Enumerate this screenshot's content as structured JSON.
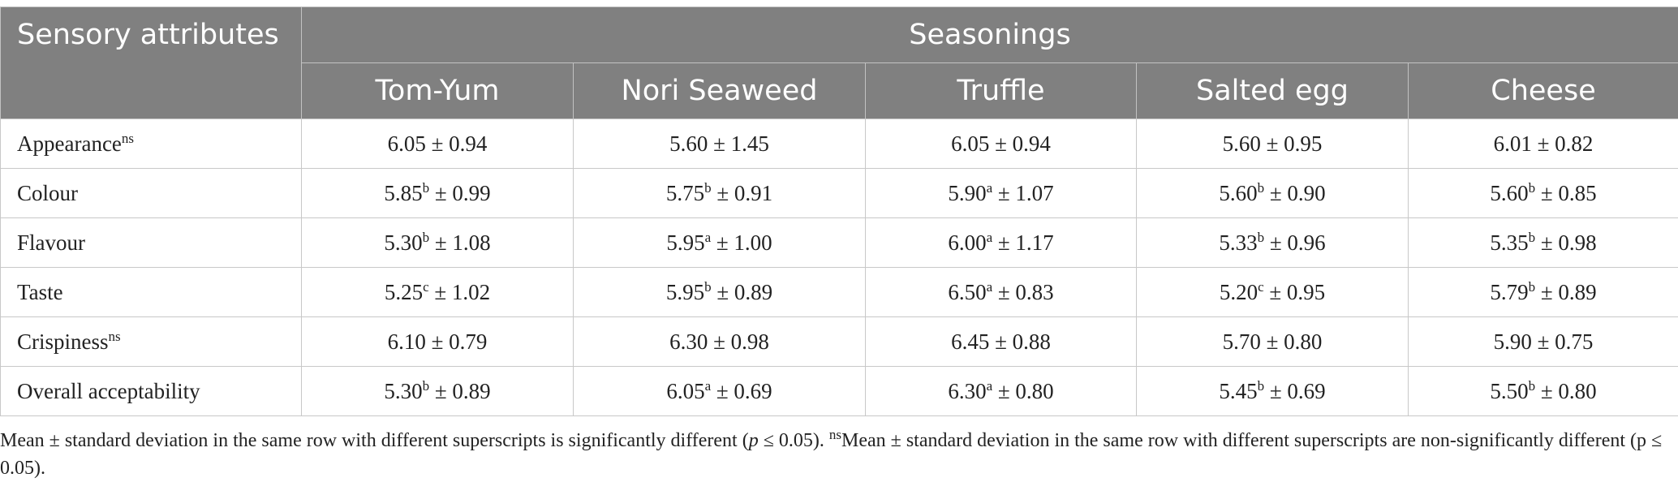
{
  "table": {
    "attr_header": "Sensory attributes",
    "group_header": "Seasonings",
    "columns": [
      "Tom-Yum",
      "Nori Seaweed",
      "Truffle",
      "Salted egg",
      "Cheese"
    ],
    "rows": [
      {
        "name": "Appearance",
        "sup": "ns",
        "cells": [
          {
            "mean": "6.05",
            "sup": "",
            "sd": "± 0.94"
          },
          {
            "mean": "5.60",
            "sup": "",
            "sd": "± 1.45"
          },
          {
            "mean": "6.05",
            "sup": "",
            "sd": "± 0.94"
          },
          {
            "mean": "5.60",
            "sup": "",
            "sd": "± 0.95"
          },
          {
            "mean": "6.01",
            "sup": "",
            "sd": "± 0.82"
          }
        ]
      },
      {
        "name": "Colour",
        "sup": "",
        "cells": [
          {
            "mean": "5.85",
            "sup": "b",
            "sd": "± 0.99"
          },
          {
            "mean": "5.75",
            "sup": "b",
            "sd": "± 0.91"
          },
          {
            "mean": "5.90",
            "sup": "a",
            "sd": "± 1.07"
          },
          {
            "mean": "5.60",
            "sup": "b",
            "sd": "± 0.90"
          },
          {
            "mean": "5.60",
            "sup": "b",
            "sd": "± 0.85"
          }
        ]
      },
      {
        "name": "Flavour",
        "sup": "",
        "cells": [
          {
            "mean": "5.30",
            "sup": "b",
            "sd": "± 1.08"
          },
          {
            "mean": "5.95",
            "sup": "a",
            "sd": "± 1.00"
          },
          {
            "mean": "6.00",
            "sup": "a",
            "sd": "± 1.17"
          },
          {
            "mean": "5.33",
            "sup": "b",
            "sd": "± 0.96"
          },
          {
            "mean": "5.35",
            "sup": "b",
            "sd": "± 0.98"
          }
        ]
      },
      {
        "name": "Taste",
        "sup": "",
        "cells": [
          {
            "mean": "5.25",
            "sup": "c",
            "sd": "± 1.02"
          },
          {
            "mean": "5.95",
            "sup": "b",
            "sd": "± 0.89"
          },
          {
            "mean": "6.50",
            "sup": "a",
            "sd": "± 0.83"
          },
          {
            "mean": "5.20",
            "sup": "c",
            "sd": "± 0.95"
          },
          {
            "mean": "5.79",
            "sup": "b",
            "sd": "± 0.89"
          }
        ]
      },
      {
        "name": "Crispiness",
        "sup": "ns",
        "cells": [
          {
            "mean": "6.10",
            "sup": "",
            "sd": "± 0.79"
          },
          {
            "mean": "6.30",
            "sup": "",
            "sd": "± 0.98"
          },
          {
            "mean": "6.45",
            "sup": "",
            "sd": "± 0.88"
          },
          {
            "mean": "5.70",
            "sup": "",
            "sd": "± 0.80"
          },
          {
            "mean": "5.90",
            "sup": "",
            "sd": "± 0.75"
          }
        ]
      },
      {
        "name": "Overall acceptability",
        "sup": "",
        "cells": [
          {
            "mean": "5.30",
            "sup": "b",
            "sd": "± 0.89"
          },
          {
            "mean": "6.05",
            "sup": "a",
            "sd": "± 0.69"
          },
          {
            "mean": "6.30",
            "sup": "a",
            "sd": "± 0.80"
          },
          {
            "mean": "5.45",
            "sup": "b",
            "sd": "± 0.69"
          },
          {
            "mean": "5.50",
            "sup": "b",
            "sd": "± 0.80"
          }
        ]
      }
    ]
  },
  "footnote": {
    "part1": "Mean ± standard deviation in the same row with different superscripts is significantly different (",
    "p_italic": "p",
    "part2": " ≤ 0.05). ",
    "ns_sup": "ns",
    "part3": "Mean ± standard deviation in the same row with different superscripts are non-significantly different (p ≤ 0.05)."
  },
  "colors": {
    "header_bg": "#808080",
    "header_text": "#ffffff",
    "border": "#c8c8c8"
  }
}
